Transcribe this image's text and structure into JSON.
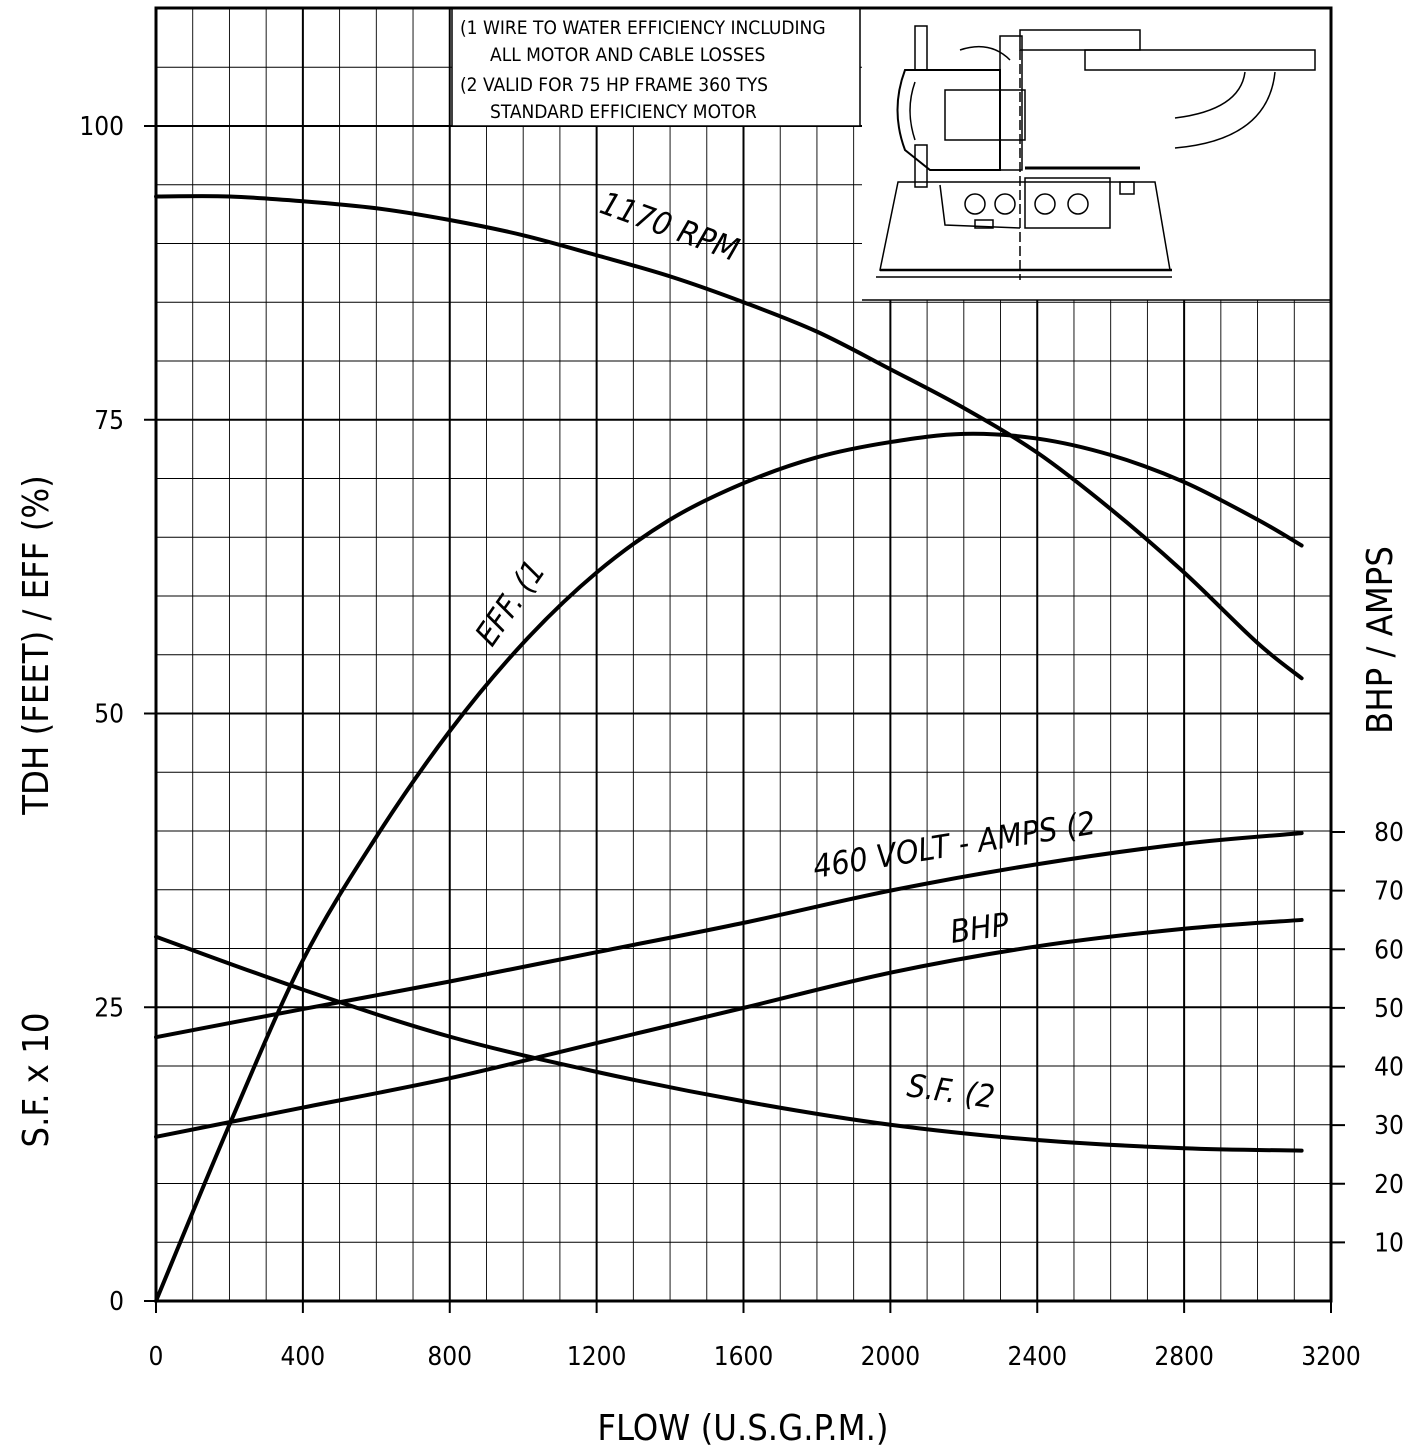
{
  "chart_data": {
    "type": "line",
    "title": "",
    "xlabel": "FLOW  (U.S.G.P.M.)",
    "ylabel_left_top": "TDH (FEET) / EFF (%)",
    "ylabel_left_bottom": "S.F. x 10",
    "ylabel_right": "BHP / AMPS",
    "xlim": [
      0,
      3200
    ],
    "ylim_left": [
      0,
      110
    ],
    "ylim_right": [
      0,
      80
    ],
    "x_ticks": [
      "0",
      "400",
      "800",
      "1200",
      "1600",
      "2000",
      "2400",
      "2800",
      "3200"
    ],
    "y_left_ticks": [
      "0",
      "25",
      "50",
      "75",
      "100"
    ],
    "y_right_ticks": [
      "10",
      "20",
      "30",
      "40",
      "50",
      "60",
      "70",
      "80"
    ],
    "grid": true,
    "notes": [
      "(1 WIRE TO WATER EFFICIENCY INCLUDING",
      "ALL MOTOR AND CABLE LOSSES",
      "(2 VALID FOR 75 HP FRAME 360 TYS",
      "STANDARD EFFICIENCY MOTOR"
    ],
    "series": [
      {
        "name": "1170 RPM",
        "axis": "left",
        "x": [
          0,
          200,
          400,
          600,
          800,
          1000,
          1200,
          1400,
          1600,
          1800,
          2000,
          2200,
          2400,
          2600,
          2800,
          3000,
          3120
        ],
        "y": [
          94,
          94,
          93.6,
          93,
          92,
          90.7,
          89,
          87.2,
          85,
          82.5,
          79.3,
          76,
          72.2,
          67.4,
          62,
          56,
          53
        ]
      },
      {
        "name": "EFF. (1",
        "axis": "left",
        "x": [
          0,
          200,
          400,
          600,
          800,
          1000,
          1200,
          1400,
          1600,
          1800,
          2000,
          2200,
          2400,
          2600,
          2800,
          3000,
          3120
        ],
        "y": [
          0,
          15,
          29,
          39.5,
          48.5,
          56,
          62,
          66.5,
          69.6,
          71.8,
          73.1,
          73.8,
          73.4,
          72,
          69.7,
          66.5,
          64.3
        ]
      },
      {
        "name": "460 VOLT - AMPS (2",
        "axis": "right",
        "x": [
          0,
          400,
          800,
          1200,
          1600,
          2000,
          2400,
          2800,
          3120
        ],
        "y": [
          45,
          49.8,
          54.5,
          59.5,
          64.5,
          70,
          74.5,
          78,
          79.8
        ]
      },
      {
        "name": "BHP",
        "axis": "right",
        "x": [
          0,
          400,
          800,
          1200,
          1600,
          2000,
          2400,
          2800,
          3120
        ],
        "y": [
          28,
          33,
          38,
          44,
          50,
          56,
          60.5,
          63.5,
          65
        ]
      },
      {
        "name": "S.F. (2",
        "axis": "left",
        "x": [
          0,
          400,
          800,
          1200,
          1600,
          2000,
          2400,
          2800,
          3120
        ],
        "y": [
          31,
          26.5,
          22.5,
          19.5,
          17,
          15,
          13.7,
          13,
          12.8
        ]
      }
    ]
  }
}
